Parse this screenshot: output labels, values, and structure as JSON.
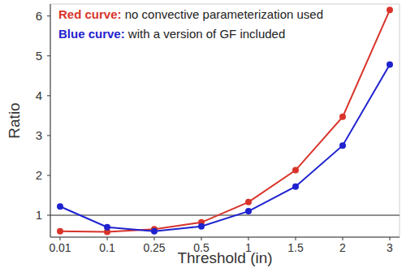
{
  "chart_data": {
    "type": "line",
    "x_label": "Threshold (in)",
    "y_label": "Ratio",
    "categories": [
      "0.01",
      "0.1",
      "0.25",
      "0.5",
      "1",
      "1.5",
      "2",
      "3"
    ],
    "series": [
      {
        "name": "Red curve: no convective parameterization used",
        "color": "#d8342b",
        "marker": "circle",
        "values": [
          0.6,
          0.58,
          0.65,
          0.82,
          1.33,
          2.13,
          3.47,
          6.15
        ]
      },
      {
        "name": "Blue curve: with a version of GF included",
        "color": "#1f22cf",
        "marker": "circle",
        "values": [
          1.22,
          0.7,
          0.6,
          0.72,
          1.1,
          1.72,
          2.75,
          4.78
        ]
      }
    ],
    "ylim": [
      0.45,
      6.3
    ],
    "yticks": [
      1,
      2,
      3,
      4,
      5,
      6
    ],
    "reference_line": 1,
    "grid": false,
    "legend": "upper-left"
  }
}
